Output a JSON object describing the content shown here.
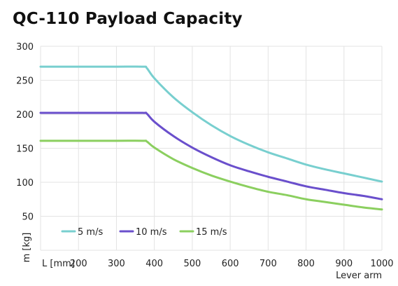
{
  "chart_data": {
    "type": "line",
    "title": "QC-110 Payload Capacity",
    "xlabel": "Lever arm",
    "ylabel": "m [kg]",
    "x_unit_label": "L [mm]",
    "xlim": [
      100,
      1000
    ],
    "ylim": [
      0,
      300
    ],
    "x_ticks": [
      200,
      300,
      400,
      500,
      600,
      700,
      800,
      900,
      1000
    ],
    "y_ticks": [
      50,
      100,
      150,
      200,
      250,
      300
    ],
    "grid": true,
    "legend_position": "bottom-left",
    "series": [
      {
        "name": "5 m/s",
        "color": "#78cfcf",
        "x": [
          100,
          200,
          300,
          370,
          380,
          400,
          450,
          500,
          550,
          600,
          650,
          700,
          750,
          800,
          850,
          900,
          950,
          1000
        ],
        "values": [
          270,
          270,
          270,
          270,
          268,
          253,
          225,
          203,
          184,
          168,
          155,
          144,
          135,
          126,
          119,
          113,
          107,
          101
        ]
      },
      {
        "name": "10 m/s",
        "color": "#6a4fcc",
        "x": [
          100,
          200,
          300,
          370,
          380,
          400,
          450,
          500,
          550,
          600,
          650,
          700,
          750,
          800,
          850,
          900,
          950,
          1000
        ],
        "values": [
          202,
          202,
          202,
          202,
          201,
          189,
          168,
          151,
          137,
          125,
          116,
          108,
          101,
          94,
          89,
          84,
          80,
          75
        ]
      },
      {
        "name": "15 m/s",
        "color": "#8bcf5f",
        "x": [
          100,
          200,
          300,
          370,
          380,
          400,
          450,
          500,
          550,
          600,
          650,
          700,
          750,
          800,
          850,
          900,
          950,
          1000
        ],
        "values": [
          161,
          161,
          161,
          161,
          160,
          151,
          134,
          121,
          110,
          101,
          93,
          86,
          81,
          75,
          71,
          67,
          63,
          60
        ]
      }
    ]
  }
}
